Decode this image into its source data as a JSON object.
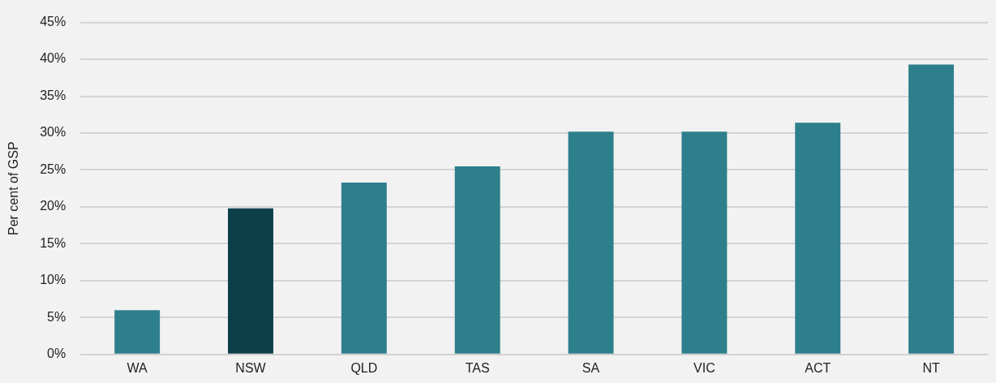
{
  "chart_data": {
    "type": "bar",
    "ylabel": "Per cent of GSP",
    "categories": [
      "WA",
      "NSW",
      "QLD",
      "TAS",
      "SA",
      "VIC",
      "ACT",
      "NT"
    ],
    "values": [
      6.0,
      19.8,
      23.3,
      25.5,
      30.2,
      30.2,
      31.4,
      39.3
    ],
    "colors": [
      "#2e7f8c",
      "#0c3f4a",
      "#2e7f8c",
      "#2e7f8c",
      "#2e7f8c",
      "#2e7f8c",
      "#2e7f8c",
      "#2e7f8c"
    ],
    "ylim": [
      0,
      45
    ],
    "yticks": [
      {
        "value": 0,
        "label": "0%"
      },
      {
        "value": 5,
        "label": "5%"
      },
      {
        "value": 10,
        "label": "10%"
      },
      {
        "value": 15,
        "label": "15%"
      },
      {
        "value": 20,
        "label": "20%"
      },
      {
        "value": 25,
        "label": "25%"
      },
      {
        "value": 30,
        "label": "30%"
      },
      {
        "value": 35,
        "label": "35%"
      },
      {
        "value": 40,
        "label": "40%"
      },
      {
        "value": 45,
        "label": "45%"
      }
    ],
    "grid": "y",
    "legend": false
  }
}
